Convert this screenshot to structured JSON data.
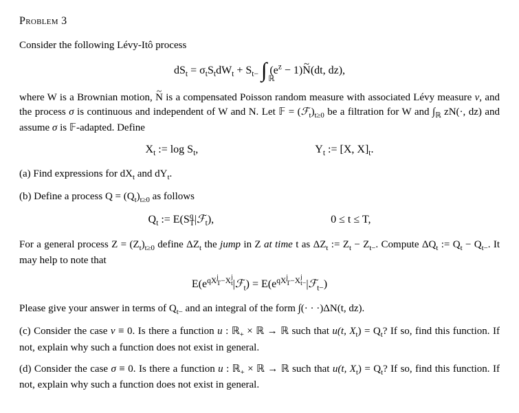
{
  "header": "Problem 3",
  "p1": "Consider the following Lévy-Itô process",
  "eq1": {
    "lhs": "dS",
    "lhs_sub": "t",
    "rhs_a": " = σ",
    "rhs_b": "S",
    "rhs_c": "dW",
    "rhs_d": " + S",
    "t_minus": "t−",
    "int_sub": "ℝ",
    "int_body_a": "(e",
    "int_body_sup": "z",
    "int_body_b": " − 1)",
    "ntilde": "N",
    "int_tail": "(dt, dz),"
  },
  "p2a": "where W is a Brownian motion, ",
  "p2_ntilde": "N",
  "p2b": " is a compensated Poisson random measure with associated Lévy measure ",
  "p2_nu": "ν",
  "p2c": ", and the process ",
  "p2_sigma": "σ",
  "p2d": " is continuous and independent of W and N. Let ",
  "p2_F": "𝔽",
  "p2e": " = (",
  "p2_Ft": "ℱ",
  "p2_Ft_sub": "t",
  "p2f": ")",
  "p2_tge0": "t≥0",
  "p2g": " be a filtration for W and ",
  "p2_int": "∫",
  "p2_intsub": "ℝ",
  "p2_intbody": " zN(·, dz) and assume ",
  "p2h": " is ",
  "p2_F2": "𝔽",
  "p2i": "-adapted. Define",
  "eq2a": {
    "pre": "X",
    "sub": "t",
    "mid": " := log S",
    "sub2": "t",
    "tail": ","
  },
  "eq2b": {
    "pre": "Y",
    "sub": "t",
    "mid": " := [X, X]",
    "sub2": "t",
    "tail": "."
  },
  "partA": "(a) Find expressions for dX",
  "partA_t": "t",
  "partA_mid": " and dY",
  "partA_tail": ".",
  "partB": "(b) Define a process Q = (Q",
  "partB_sub": "t",
  "partB_mid": ")",
  "partB_sub2": "t≥0",
  "partB_tail": " as follows",
  "eq3a": {
    "pre": "Q",
    "sub": "t",
    "mid": " := E(S",
    "sup": "q",
    "supsub": "T",
    "bar": "|",
    "F": "ℱ",
    "Fsub": "t",
    "tail": "),"
  },
  "eq3b": "0 ≤ t ≤ T,",
  "p3a": "For a general process Z = (Z",
  "p3_sub": "t",
  "p3b": ")",
  "p3_sub2": "t≥0",
  "p3c": " define ΔZ",
  "p3d": " the ",
  "p3_jump": "jump",
  "p3e": " in Z ",
  "p3e_at": "at time",
  "p3f": " t as ΔZ",
  "p3g": " := Z",
  "p3h": " − Z",
  "p3_tminus": "t−",
  "p3i": ". Compute ΔQ",
  "p3j": " := Q",
  "p3k": " − Q",
  "p3l": ". It may help to note that",
  "eq4": {
    "pre": "E(e",
    "exp1a": "qX",
    "exp1a_sup": "j",
    "exp1a_sub": "T",
    "exp1b": "−X",
    "exp1b_sup": "j",
    "exp1b_sub": "t",
    "bar1": "|",
    "F1": "ℱ",
    "F1sub": "t",
    "mid": ") = E(e",
    "exp2a": "qX",
    "exp2a_sup": "j",
    "exp2a_sub": "T",
    "exp2b": "−X",
    "exp2b_sup": "j",
    "exp2b_sub": "t−",
    "bar2": "|",
    "F2": "ℱ",
    "F2sub": "t−",
    "tail": ")"
  },
  "p4a": "Please give your answer in terms of Q",
  "p4_sub": "t−",
  "p4b": " and an integral of the form ",
  "p4_int": "∫(· · ·)ΔN(t, dz).",
  "partC_a": "(c) Consider the case ",
  "partC_nu": "ν",
  "partC_b": " ≡ 0. Is there a function ",
  "partC_u": "u",
  "partC_c": " : ℝ",
  "partC_plus": "+",
  "partC_d": " × ℝ → ℝ such that ",
  "partC_e": "u(t, X",
  "partC_sub": "t",
  "partC_f": ") = Q",
  "partC_g": "? If so, find this function. If not, explain why such a function does not exist in general.",
  "partD_a": "(d) Consider the case ",
  "partD_sigma": "σ",
  "partD_b": " ≡ 0. Is there a function ",
  "partD_u": "u",
  "partD_c": " : ℝ",
  "partD_plus": "+",
  "partD_d": " × ℝ → ℝ such that ",
  "partD_e": "u(t, X",
  "partD_sub": "t",
  "partD_f": ") = Q",
  "partD_g": "? If so, find this function. If not, explain why such a function does not exist in general."
}
